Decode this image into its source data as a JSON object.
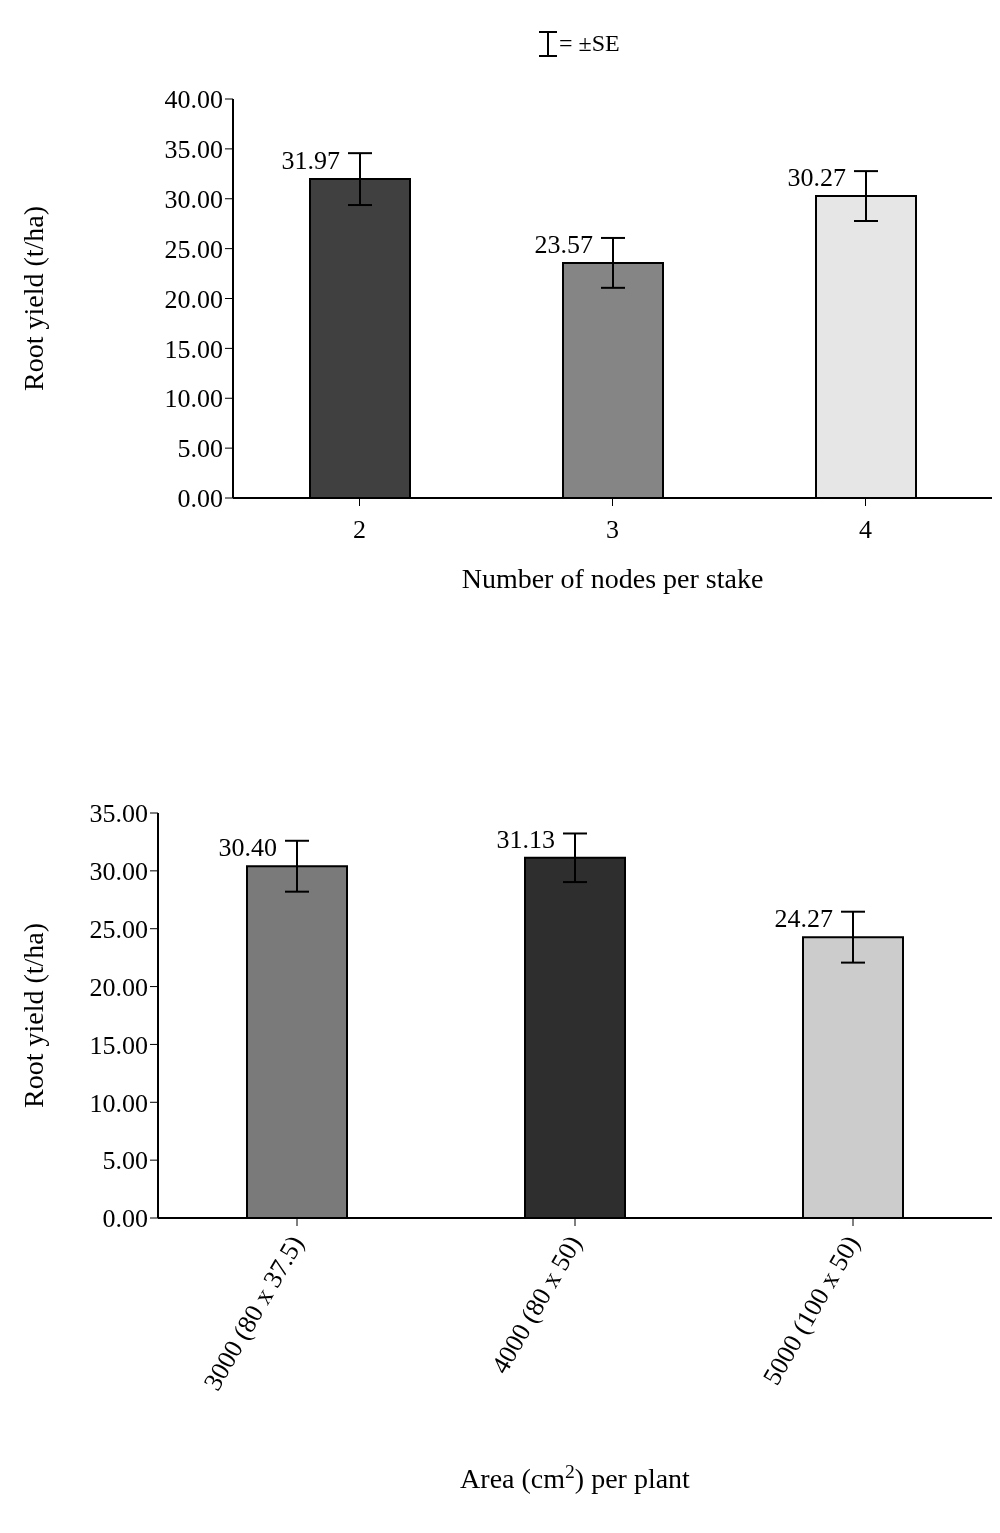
{
  "chart_data": [
    {
      "type": "bar",
      "annotations": [
        "= ±SE"
      ],
      "xlabel": "Number of nodes per stake",
      "ylabel": "Root yield (t/ha)",
      "categories": [
        "2",
        "3",
        "4"
      ],
      "values": [
        31.97,
        23.57,
        30.27
      ],
      "errors": [
        2.6,
        2.5,
        2.5
      ],
      "colors": [
        "#404040",
        "#858585",
        "#e6e6e6"
      ],
      "data_labels": true,
      "ylim": [
        0,
        40
      ],
      "yticks": [
        {
          "value": 0,
          "label": "0.00"
        },
        {
          "value": 5,
          "label": "5.00"
        },
        {
          "value": 10,
          "label": "10.00"
        },
        {
          "value": 15,
          "label": "15.00"
        },
        {
          "value": 20,
          "label": "20.00"
        },
        {
          "value": 25,
          "label": "25.00"
        },
        {
          "value": 30,
          "label": "30.00"
        },
        {
          "value": 35,
          "label": "35.00"
        },
        {
          "value": 40,
          "label": "40.00"
        }
      ],
      "grid": false,
      "legend": false
    },
    {
      "type": "bar",
      "xlabel": "Area (cm$^{2}$) per plant",
      "ylabel": "Root yield (t/ha)",
      "categories": [
        "3000 (80 x 37.5)",
        "4000 (80 x 50)",
        "5000 (100 x 50)"
      ],
      "values": [
        30.4,
        31.13,
        24.27
      ],
      "value_labels": [
        "30.40",
        "31.13",
        "24.27"
      ],
      "errors": [
        2.2,
        2.1,
        2.2
      ],
      "colors": [
        "#7a7a7a",
        "#2e2e2e",
        "#cccccc"
      ],
      "ylim": [
        0,
        35
      ],
      "yticks": [
        {
          "value": 0,
          "label": "0.00"
        },
        {
          "value": 5,
          "label": "5.00"
        },
        {
          "value": 10,
          "label": "10.00"
        },
        {
          "value": 15,
          "label": "15.00"
        },
        {
          "value": 20,
          "label": "20.00"
        },
        {
          "value": 25,
          "label": "25.00"
        },
        {
          "value": 30,
          "label": "30.00"
        },
        {
          "value": 35,
          "label": "35.00"
        }
      ],
      "grid": false,
      "legend": false
    }
  ]
}
